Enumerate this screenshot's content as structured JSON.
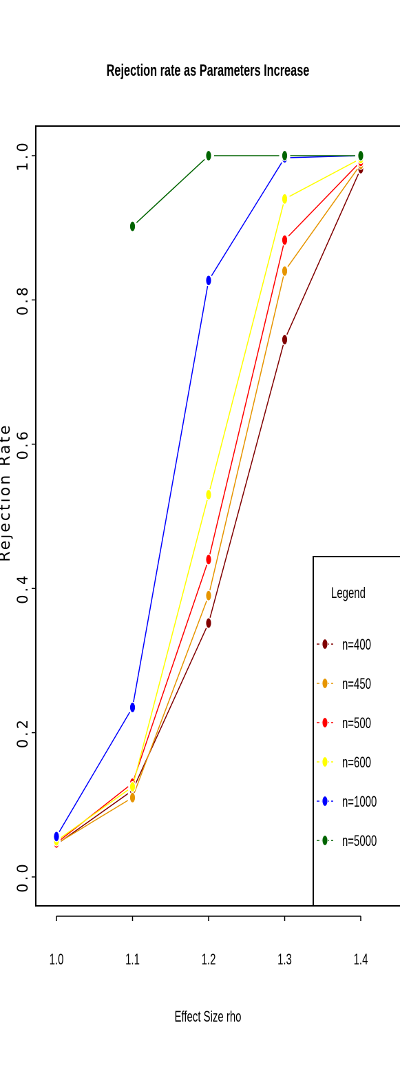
{
  "chart_data": {
    "type": "line",
    "title": "Rejection rate as Parameters Increase",
    "xlabel": "Effect Size rho",
    "ylabel": "Rejection Rate",
    "x": [
      1.0,
      1.1,
      1.2,
      1.3,
      1.4
    ],
    "x_tick_labels": [
      "1.0",
      "1.1",
      "1.2",
      "1.3",
      "1.4"
    ],
    "y_ticks": [
      0.0,
      0.2,
      0.4,
      0.6,
      0.8,
      1.0
    ],
    "y_tick_labels": [
      "0.0",
      "0.2",
      "0.4",
      "0.6",
      "0.8",
      "1.0"
    ],
    "xlim": [
      0.97,
      1.43
    ],
    "ylim": [
      -0.04,
      1.04
    ],
    "grid": false,
    "legend": {
      "title": "Legend",
      "placement": "bottom-right"
    },
    "series": [
      {
        "name": "n=400",
        "color": "#800000",
        "values": [
          0.045,
          0.12,
          0.352,
          0.745,
          0.982
        ]
      },
      {
        "name": "n=450",
        "color": "#e69500",
        "values": [
          0.046,
          0.11,
          0.39,
          0.84,
          0.988
        ]
      },
      {
        "name": "n=500",
        "color": "#ff0000",
        "values": [
          0.047,
          0.13,
          0.44,
          0.883,
          0.992
        ]
      },
      {
        "name": "n=600",
        "color": "#ffff00",
        "values": [
          0.05,
          0.125,
          0.53,
          0.94,
          0.996
        ]
      },
      {
        "name": "n=1000",
        "color": "#0000ff",
        "values": [
          0.056,
          0.235,
          0.827,
          0.997,
          1.0
        ]
      },
      {
        "name": "n=5000",
        "color": "#006400",
        "values": [
          null,
          0.902,
          1.0,
          1.0,
          1.0
        ]
      }
    ]
  }
}
